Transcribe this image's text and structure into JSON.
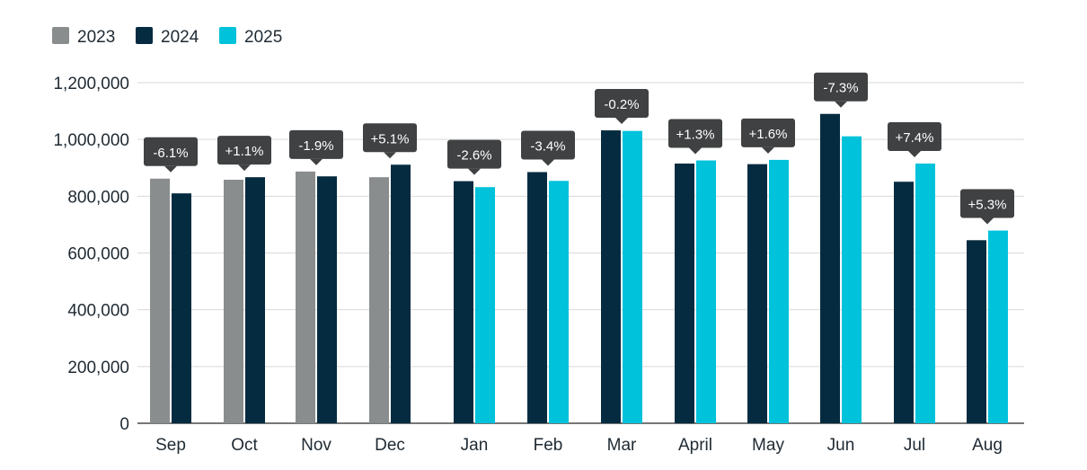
{
  "chart_data": {
    "type": "bar",
    "title": "",
    "xlabel": "",
    "ylabel": "",
    "ylim": [
      0,
      1200000
    ],
    "yticks": [
      0,
      200000,
      400000,
      600000,
      800000,
      1000000,
      1200000
    ],
    "ytick_labels": [
      "0",
      "200,000",
      "400,000",
      "600,000",
      "800,000",
      "1,000,000",
      "1,200,000"
    ],
    "grid": true,
    "legend_position": "top-left",
    "categories": [
      "Sep",
      "Oct",
      "Nov",
      "Dec",
      "Jan",
      "Feb",
      "Mar",
      "April",
      "May",
      "Jun",
      "Jul",
      "Aug"
    ],
    "series": [
      {
        "name": "2023",
        "color": "#8a8d8e",
        "values": [
          862000,
          858000,
          887000,
          867000,
          null,
          null,
          null,
          null,
          null,
          null,
          null,
          null
        ]
      },
      {
        "name": "2024",
        "color": "#052b40",
        "values": [
          810000,
          867000,
          870000,
          911000,
          853000,
          885000,
          1032000,
          915000,
          913000,
          1090000,
          851000,
          645000
        ]
      },
      {
        "name": "2025",
        "color": "#00c2da",
        "values": [
          null,
          null,
          null,
          null,
          832000,
          854000,
          1030000,
          926000,
          928000,
          1011000,
          915000,
          679000
        ]
      }
    ],
    "annotations": [
      "-6.1%",
      "+1.1%",
      "-1.9%",
      "+5.1%",
      "-2.6%",
      "-3.4%",
      "-0.2%",
      "+1.3%",
      "+1.6%",
      "-7.3%",
      "+7.4%",
      "+5.3%"
    ],
    "annotation_color": "#3f4142"
  }
}
